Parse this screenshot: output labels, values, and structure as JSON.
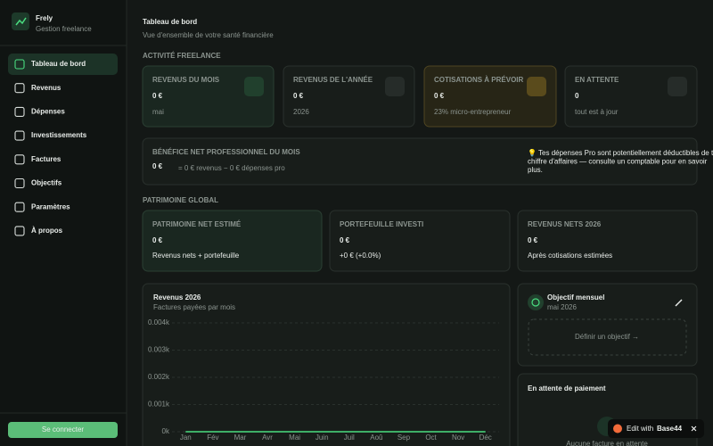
{
  "sidebar": {
    "brand": "Frely",
    "tagline": "Gestion freelance",
    "nav": [
      "Tableau de bord",
      "Revenus",
      "Dépenses",
      "Investissements",
      "Factures",
      "Objectifs",
      "Paramètres",
      "À propos"
    ],
    "login": "Se connecter"
  },
  "header": {
    "title": "Tableau de bord",
    "subtitle": "Vue d'ensemble de votre santé financière"
  },
  "activity": {
    "heading": "ACTIVITÉ FREELANCE",
    "cards": [
      {
        "label": "REVENUS DU MOIS",
        "value": "0 €",
        "note": "mai"
      },
      {
        "label": "REVENUS DE L'ANNÉE",
        "value": "0 €",
        "note": "2026"
      },
      {
        "label": "COTISATIONS À PRÉVOIR",
        "value": "0 €",
        "note": "23% micro-entrepreneur"
      },
      {
        "label": "EN ATTENTE",
        "value": "0",
        "note": "tout est à jour"
      }
    ]
  },
  "profit": {
    "label": "BÉNÉFICE NET PROFESSIONNEL DU MOIS",
    "value": "0 €",
    "detail": "= 0 € revenus − 0 € dépenses pro",
    "tip": [
      "💡 Tes dépenses Pro sont potentiellement déductibles de ton",
      "chiffre d'affaires — consulte un comptable pour en savoir",
      "plus."
    ]
  },
  "patrimoine": {
    "heading": "PATRIMOINE GLOBAL",
    "cards": [
      {
        "label": "PATRIMOINE NET ESTIMÉ",
        "value": "0 €",
        "note": "Revenus nets + portefeuille"
      },
      {
        "label": "PORTEFEUILLE INVESTI",
        "value": "0 €",
        "note": "+0 € (+0.0%)"
      },
      {
        "label": "REVENUS NETS 2026",
        "value": "0 €",
        "note": "Après cotisations estimées"
      }
    ]
  },
  "chart_data": {
    "type": "line",
    "title": "Revenus 2026",
    "subtitle": "Factures payées par mois",
    "categories": [
      "Jan",
      "Fév",
      "Mar",
      "Avr",
      "Mai",
      "Juin",
      "Juil",
      "Aoû",
      "Sep",
      "Oct",
      "Nov",
      "Déc"
    ],
    "values": [
      0,
      0,
      0,
      0,
      0,
      0,
      0,
      0,
      0,
      0,
      0,
      0
    ],
    "color": "#4ade80",
    "ylim": [
      0,
      4
    ],
    "yticks": [
      {
        "value": 0,
        "label": "0k"
      },
      {
        "value": 1,
        "label": "0.001k"
      },
      {
        "value": 2,
        "label": "0.002k"
      },
      {
        "value": 3,
        "label": "0.003k"
      },
      {
        "value": 4,
        "label": "0.004k"
      }
    ],
    "grid": true
  },
  "objective": {
    "title": "Objectif mensuel",
    "period": "mai 2026",
    "action": "Définir un objectif →"
  },
  "pending": {
    "title": "En attente de paiement",
    "empty": "Aucune facture en attente"
  },
  "badge": {
    "text": "Edit with",
    "brand": "Base44"
  }
}
